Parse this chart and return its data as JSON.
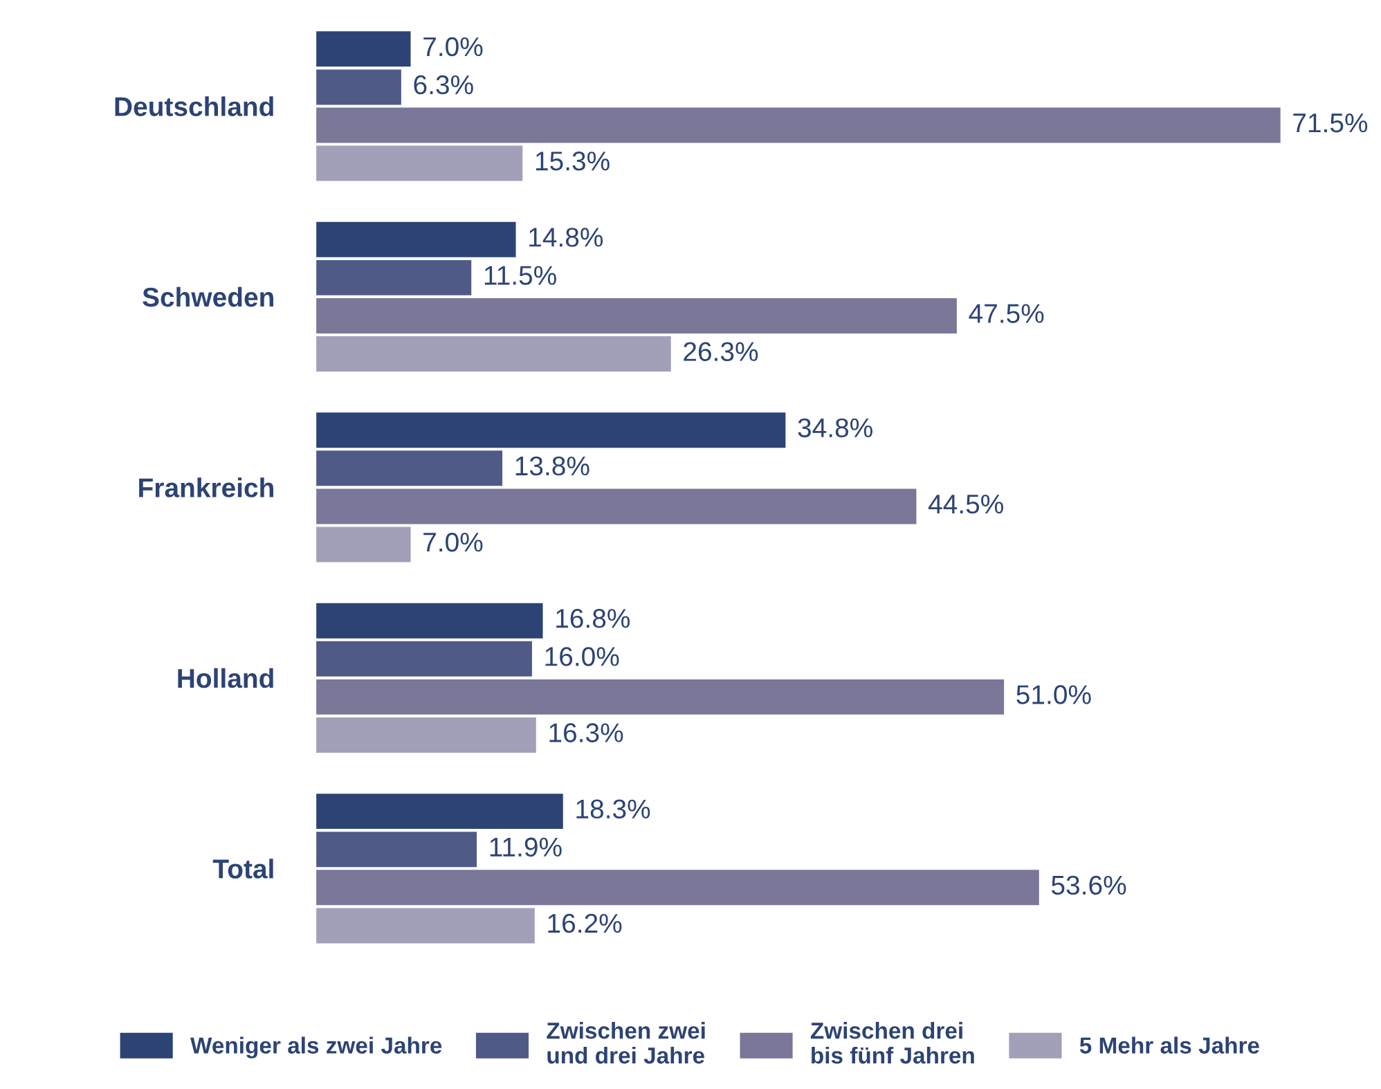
{
  "chart_data": {
    "type": "bar",
    "orientation": "horizontal",
    "categories": [
      "Deutschland",
      "Schweden",
      "Frankreich",
      "Holland",
      "Total"
    ],
    "series": [
      {
        "name": "Weniger als zwei Jahre",
        "color": "#2c4374",
        "values": [
          7.0,
          14.8,
          34.8,
          16.8,
          18.3
        ],
        "value_labels": [
          "7.0%",
          "14.8%",
          "34.8%",
          "16.8%",
          "18.3%"
        ]
      },
      {
        "name": "Zwischen zwei\nund drei Jahre",
        "color": "#4f5a87",
        "values": [
          6.3,
          11.5,
          13.8,
          16.0,
          11.9
        ],
        "value_labels": [
          "6.3%",
          "11.5%",
          "13.8%",
          "16.0%",
          "11.9%"
        ]
      },
      {
        "name": "Zwischen drei\nbis fünf Jahren",
        "color": "#7a7799",
        "values": [
          71.5,
          47.5,
          44.5,
          51.0,
          53.6
        ],
        "value_labels": [
          "71.5%",
          "47.5%",
          "44.5%",
          "51.0%",
          "53.6%"
        ]
      },
      {
        "name": "5 Mehr als Jahre",
        "color": "#a29fb8",
        "values": [
          15.3,
          26.3,
          7.0,
          16.3,
          16.2
        ],
        "value_labels": [
          "15.3%",
          "26.3%",
          "7.0%",
          "16.3%",
          "16.2%"
        ]
      }
    ],
    "tick_labels": "y",
    "legend": "bottom",
    "grid": false
  }
}
